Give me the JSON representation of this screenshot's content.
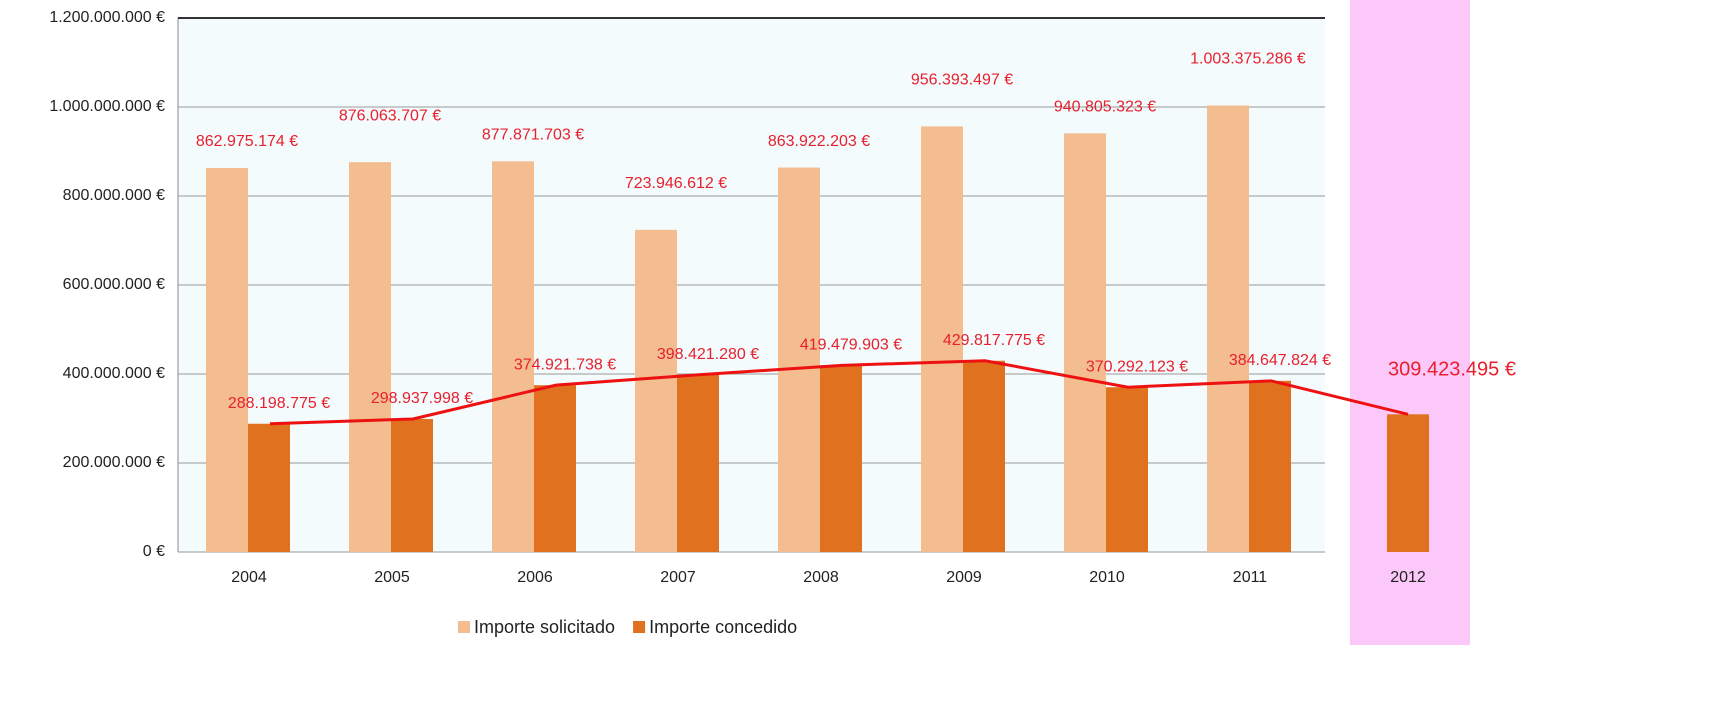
{
  "chart_data": {
    "type": "bar",
    "categories": [
      "2004",
      "2005",
      "2006",
      "2007",
      "2008",
      "2009",
      "2010",
      "2011",
      "2012"
    ],
    "series": [
      {
        "name": "Importe solicitado",
        "color": "#f3bd90",
        "values": [
          862975174,
          876063707,
          877871703,
          723946612,
          863922203,
          956393497,
          940805323,
          1003375286,
          null
        ],
        "value_labels": [
          "862.975.174 €",
          "876.063.707 €",
          "877.871.703 €",
          "723.946.612 €",
          "863.922.203 €",
          "956.393.497 €",
          "940.805.323 €",
          "1.003.375.286 €",
          null
        ]
      },
      {
        "name": "Importe concedido",
        "color": "#e0711f",
        "values": [
          288198775,
          298937998,
          374921738,
          398421280,
          419479903,
          429817775,
          370292123,
          384647824,
          309423495
        ],
        "value_labels": [
          "288.198.775 €",
          "298.937.998 €",
          "374.921.738 €",
          "398.421.280 €",
          "419.479.903 €",
          "429.817.775 €",
          "370.292.123 €",
          "384.647.824 €",
          "309.423.495 €"
        ]
      }
    ],
    "ylim": [
      0,
      1200000000
    ],
    "yticks": [
      {
        "value": 0,
        "label": "0 €"
      },
      {
        "value": 200000000,
        "label": "200.000.000 €"
      },
      {
        "value": 400000000,
        "label": "400.000.000 €"
      },
      {
        "value": 600000000,
        "label": "600.000.000 €"
      },
      {
        "value": 800000000,
        "label": "800.000.000 €"
      },
      {
        "value": 1000000000,
        "label": "1.000.000.000 €"
      },
      {
        "value": 1200000000,
        "label": "1.200.000.000 €"
      }
    ],
    "grid": true,
    "legend": "bottom",
    "line_color": "#ee1111"
  }
}
